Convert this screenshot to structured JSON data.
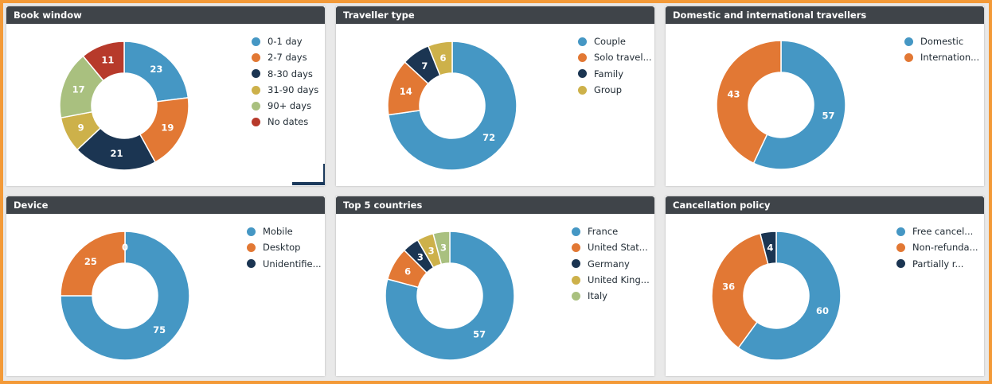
{
  "colors": {
    "blue": "#4597c4",
    "orange": "#e27834",
    "navy": "#1b3552",
    "gold": "#cdb14a",
    "olive": "#a9c07f",
    "red": "#b73a2b",
    "header_bg": "#3f4449"
  },
  "chart_data": [
    {
      "type": "pie",
      "title": "Book window",
      "categories": [
        "0-1 day",
        "2-7 days",
        "8-30 days",
        "31-90 days",
        "90+ days",
        "No dates"
      ],
      "values": [
        23,
        19,
        21,
        9,
        17,
        11
      ],
      "colors": [
        "#4597c4",
        "#e27834",
        "#1b3552",
        "#cdb14a",
        "#a9c07f",
        "#b73a2b"
      ]
    },
    {
      "type": "pie",
      "title": "Traveller type",
      "categories": [
        "Couple",
        "Solo travel...",
        "Family",
        "Group"
      ],
      "values": [
        72,
        14,
        7,
        6
      ],
      "colors": [
        "#4597c4",
        "#e27834",
        "#1b3552",
        "#cdb14a"
      ]
    },
    {
      "type": "pie",
      "title": "Domestic and international travellers",
      "categories": [
        "Domestic",
        "Internation..."
      ],
      "values": [
        57,
        43
      ],
      "colors": [
        "#4597c4",
        "#e27834"
      ]
    },
    {
      "type": "pie",
      "title": "Device",
      "categories": [
        "Mobile",
        "Desktop",
        "Unidentifie..."
      ],
      "values": [
        75,
        25,
        0
      ],
      "colors": [
        "#4597c4",
        "#e27834",
        "#1b3552"
      ]
    },
    {
      "type": "pie",
      "title": "Top 5 countries",
      "categories": [
        "France",
        "United Stat...",
        "Germany",
        "United King...",
        "Italy"
      ],
      "values": [
        57,
        6,
        3,
        3,
        3
      ],
      "colors": [
        "#4597c4",
        "#e27834",
        "#1b3552",
        "#cdb14a",
        "#a9c07f"
      ]
    },
    {
      "type": "pie",
      "title": "Cancellation policy",
      "categories": [
        "Free cancel...",
        "Non-refunda...",
        "Partially r..."
      ],
      "values": [
        60,
        36,
        4
      ],
      "colors": [
        "#4597c4",
        "#e27834",
        "#1b3552"
      ]
    }
  ]
}
